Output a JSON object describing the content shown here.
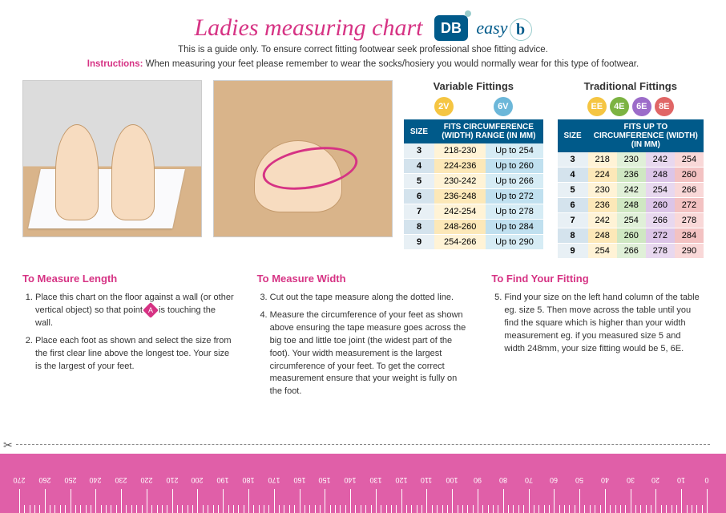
{
  "header": {
    "title": "Ladies measuring chart",
    "logo_db": "DB",
    "logo_easy": "easy",
    "logo_b": "b",
    "subtitle": "This is a guide only. To ensure correct fitting footwear seek professional shoe fitting advice.",
    "instructions_label": "Instructions:",
    "instructions_text": "When measuring your feet please remember to wear the socks/hosiery you would normally wear for this type of footwear."
  },
  "variable": {
    "title": "Variable Fittings",
    "badges": [
      {
        "label": "2V",
        "bg": "#f5c542",
        "fg": "#fff"
      },
      {
        "label": "6V",
        "bg": "#6cb7d9",
        "fg": "#fff"
      }
    ],
    "th_size": "SIZE",
    "th_range": "FITS CIRCUMFERENCE (WIDTH) RANGE (IN MM)",
    "rows": [
      {
        "size": "3",
        "v2": "218-230",
        "v6": "Up to 254"
      },
      {
        "size": "4",
        "v2": "224-236",
        "v6": "Up to 260"
      },
      {
        "size": "5",
        "v2": "230-242",
        "v6": "Up to 266"
      },
      {
        "size": "6",
        "v2": "236-248",
        "v6": "Up to 272"
      },
      {
        "size": "7",
        "v2": "242-254",
        "v6": "Up to 278"
      },
      {
        "size": "8",
        "v2": "248-260",
        "v6": "Up to 284"
      },
      {
        "size": "9",
        "v2": "254-266",
        "v6": "Up to 290"
      }
    ]
  },
  "traditional": {
    "title": "Traditional Fittings",
    "badges": [
      {
        "label": "EE",
        "bg": "#f5c542",
        "fg": "#fff"
      },
      {
        "label": "4E",
        "bg": "#7cb342",
        "fg": "#fff"
      },
      {
        "label": "6E",
        "bg": "#9c6cc9",
        "fg": "#fff"
      },
      {
        "label": "8E",
        "bg": "#e06666",
        "fg": "#fff"
      }
    ],
    "th_size": "SIZE",
    "th_range": "FITS UP TO CIRCUMFERENCE (WIDTH) (IN MM)",
    "rows": [
      {
        "size": "3",
        "ee": "218",
        "e4": "230",
        "e6": "242",
        "e8": "254"
      },
      {
        "size": "4",
        "ee": "224",
        "e4": "236",
        "e6": "248",
        "e8": "260"
      },
      {
        "size": "5",
        "ee": "230",
        "e4": "242",
        "e6": "254",
        "e8": "266"
      },
      {
        "size": "6",
        "ee": "236",
        "e4": "248",
        "e6": "260",
        "e8": "272"
      },
      {
        "size": "7",
        "ee": "242",
        "e4": "254",
        "e6": "266",
        "e8": "278"
      },
      {
        "size": "8",
        "ee": "248",
        "e4": "260",
        "e6": "272",
        "e8": "284"
      },
      {
        "size": "9",
        "ee": "254",
        "e4": "266",
        "e6": "278",
        "e8": "290"
      }
    ]
  },
  "instructions": {
    "length": {
      "title": "To Measure Length",
      "items": [
        "Place this chart on the floor against a wall (or other vertical object) so that point |A| is touching the wall.",
        "Place each foot as shown and select the size from the first clear line above the longest toe. Your size is the largest of your feet."
      ]
    },
    "width": {
      "title": "To Measure Width",
      "start": 3,
      "items": [
        "Cut out the tape measure along the dotted line.",
        "Measure the circumference of your feet as shown above ensuring the tape measure goes across the big toe and little toe joint (the widest part of the foot). Your width measurement is the largest circumference of your feet. To get the correct measurement ensure that your weight is fully on the foot."
      ]
    },
    "fitting": {
      "title": "To Find Your Fitting",
      "start": 5,
      "items": [
        "Find your size on the left hand column of the table eg. size 5. Then move across the table until you find the square which is higher than your width measurement eg. if you measured size 5 and width 248mm, your size fitting would be 5, 6E."
      ]
    }
  },
  "ruler": {
    "min": 0,
    "max": 270,
    "major_step": 10,
    "minor_per_major": 5,
    "bg": "#e05fa8"
  }
}
